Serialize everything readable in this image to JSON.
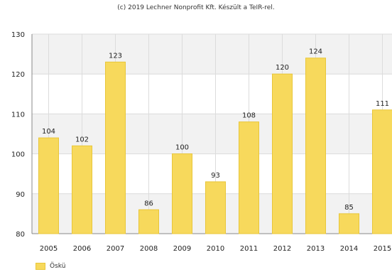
{
  "credit": "(c) 2019 Lechner Nonprofit Kft. Készült a TeIR-rel.",
  "chart_data": {
    "type": "bar",
    "categories": [
      "2005",
      "2006",
      "2007",
      "2008",
      "2009",
      "2010",
      "2011",
      "2012",
      "2013",
      "2014",
      "2015"
    ],
    "series": [
      {
        "name": "Öskü",
        "values": [
          104,
          102,
          123,
          86,
          100,
          93,
          108,
          120,
          124,
          85,
          111
        ]
      }
    ],
    "ylim": [
      80,
      130
    ],
    "yticks": [
      80,
      90,
      100,
      110,
      120,
      130
    ],
    "grid": true,
    "legend_position": "bottom-left",
    "title": "",
    "xlabel": "",
    "ylabel": "",
    "colors": {
      "bar_fill": "#f7d95c",
      "bar_stroke": "#e8c63a",
      "band": "#f2f2f2",
      "grid": "#dcdcdc",
      "axis": "#888888"
    }
  }
}
